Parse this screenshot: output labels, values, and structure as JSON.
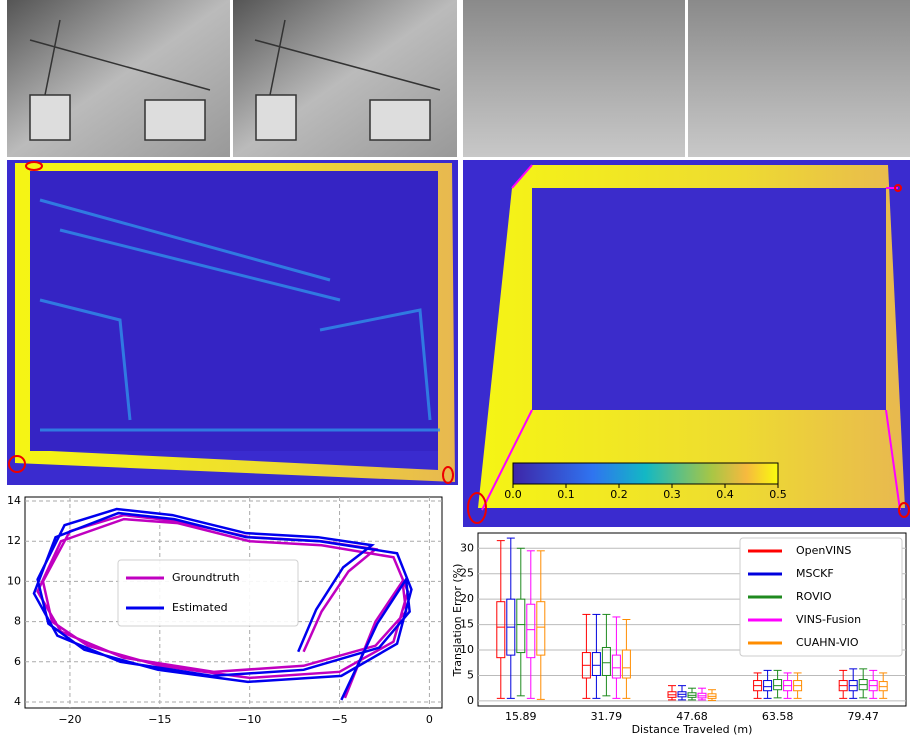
{
  "colorbar": {
    "lim": [
      0,
      0.5
    ],
    "ticks": [
      {
        "value": 0,
        "label": "0.0"
      },
      0.1,
      0.2,
      0.3,
      0.4,
      0.5
    ]
  },
  "chart_data": [
    {
      "type": "line",
      "xlim": [
        -22.5,
        0.7
      ],
      "ylim": [
        3.7,
        14.2
      ],
      "xticks": [
        {
          "value": -20,
          "label": "−20"
        },
        {
          "value": -15,
          "label": "−15"
        },
        {
          "value": -10,
          "label": "−10"
        },
        {
          "value": -5,
          "label": "−5"
        },
        0
      ],
      "yticks": [
        4,
        6,
        8,
        10,
        12,
        14
      ],
      "grid": true,
      "series": [
        {
          "name": "Groundtruth",
          "color": "#c000c0",
          "x": [
            -7,
            -6,
            -4.5,
            -3,
            -6,
            -10,
            -14,
            -17,
            -20,
            -21.5,
            -21,
            -19,
            -15,
            -10,
            -5,
            -2,
            -1.2,
            -2,
            -6,
            -10,
            -14,
            -17,
            -20.5,
            -21.8,
            -20.5,
            -17,
            -12,
            -7,
            -3,
            -1.3,
            -1.5,
            -3,
            -4.7
          ],
          "values": [
            6.5,
            8.5,
            10.5,
            11.6,
            12,
            12.2,
            13,
            13.3,
            12.5,
            10,
            8,
            6.8,
            5.8,
            5.2,
            5.5,
            7,
            9.5,
            11.2,
            11.8,
            12,
            12.9,
            13.1,
            12,
            9.5,
            7.5,
            6.2,
            5.5,
            5.8,
            6.8,
            8.5,
            10,
            8,
            4.2
          ]
        },
        {
          "name": "Estimated",
          "color": "#0000ee",
          "x": [
            -7.3,
            -6.3,
            -4.8,
            -3.2,
            -6.2,
            -10.2,
            -14.3,
            -17.4,
            -20.3,
            -21.8,
            -21.2,
            -19.2,
            -15.1,
            -10.1,
            -4.9,
            -1.8,
            -1,
            -1.8,
            -6.1,
            -10.2,
            -14.2,
            -17.3,
            -20.8,
            -22,
            -20.7,
            -17.2,
            -12.1,
            -7,
            -2.8,
            -1.1,
            -1.3,
            -2.9,
            -4.9
          ],
          "values": [
            6.5,
            8.6,
            10.7,
            11.8,
            12.2,
            12.4,
            13.3,
            13.6,
            12.8,
            10.1,
            7.9,
            6.6,
            5.6,
            5,
            5.3,
            6.9,
            9.6,
            11.4,
            12,
            12.2,
            13.1,
            13.4,
            12.2,
            9.4,
            7.3,
            6,
            5.3,
            5.6,
            6.7,
            8.5,
            10.1,
            7.9,
            4.1
          ]
        }
      ],
      "legend": "center"
    },
    {
      "type": "box",
      "x_label": "Distance Traveled (m)",
      "y_label": "Translation Error (%)",
      "categories": [
        "15.89",
        "31.79",
        "47.68",
        "63.58",
        "79.47"
      ],
      "ylim": [
        -1,
        33
      ],
      "yticks": [
        0,
        5,
        10,
        15,
        20,
        25,
        30
      ],
      "grid": true,
      "legend": "upper right",
      "series": [
        {
          "name": "OpenVINS",
          "color": "#ff0000",
          "values": [
            [
              0.5,
              8.5,
              14.5,
              19.5,
              31.5
            ],
            [
              0.5,
              4.5,
              7,
              9.5,
              17
            ],
            [
              0.2,
              0.7,
              1.2,
              1.8,
              3
            ],
            [
              0.5,
              2,
              3,
              4,
              5.5
            ],
            [
              0.5,
              2,
              3,
              4,
              6
            ]
          ]
        },
        {
          "name": "MSCKF",
          "color": "#0000dd",
          "values": [
            [
              0.5,
              9,
              14.5,
              20,
              32
            ],
            [
              0.5,
              5,
              7,
              9.5,
              17
            ],
            [
              0.2,
              0.8,
              1.3,
              1.8,
              3
            ],
            [
              0.5,
              2,
              2.8,
              4,
              6
            ],
            [
              0.5,
              2,
              3,
              4,
              6.3
            ]
          ]
        },
        {
          "name": "ROVIO",
          "color": "#1f8a1f",
          "values": [
            [
              1,
              9.5,
              15,
              20,
              30
            ],
            [
              1,
              5,
              7.5,
              10.5,
              17
            ],
            [
              0.2,
              0.7,
              1.1,
              1.6,
              2.5
            ],
            [
              0.6,
              2.2,
              3,
              4.2,
              6
            ],
            [
              0.6,
              2.2,
              3.2,
              4.2,
              6.3
            ]
          ]
        },
        {
          "name": "VINS-Fusion",
          "color": "#ff00ff",
          "values": [
            [
              0.5,
              8.5,
              14,
              19,
              29.5
            ],
            [
              0.5,
              4.5,
              6.5,
              9,
              16.5
            ],
            [
              0.2,
              0.6,
              1,
              1.5,
              2.5
            ],
            [
              0.5,
              2,
              3,
              4,
              5.5
            ],
            [
              0.5,
              2,
              3,
              4,
              6
            ]
          ]
        },
        {
          "name": "CUAHN-VIO",
          "color": "#ff8c00",
          "values": [
            [
              0.3,
              9,
              14.5,
              19.5,
              29.5
            ],
            [
              0.5,
              4.5,
              6.5,
              10,
              16
            ],
            [
              0.1,
              0.5,
              0.9,
              1.4,
              2.2
            ],
            [
              0.5,
              2,
              3,
              4,
              5.5
            ],
            [
              0.5,
              2,
              2.8,
              3.8,
              5.5
            ]
          ]
        }
      ]
    }
  ]
}
